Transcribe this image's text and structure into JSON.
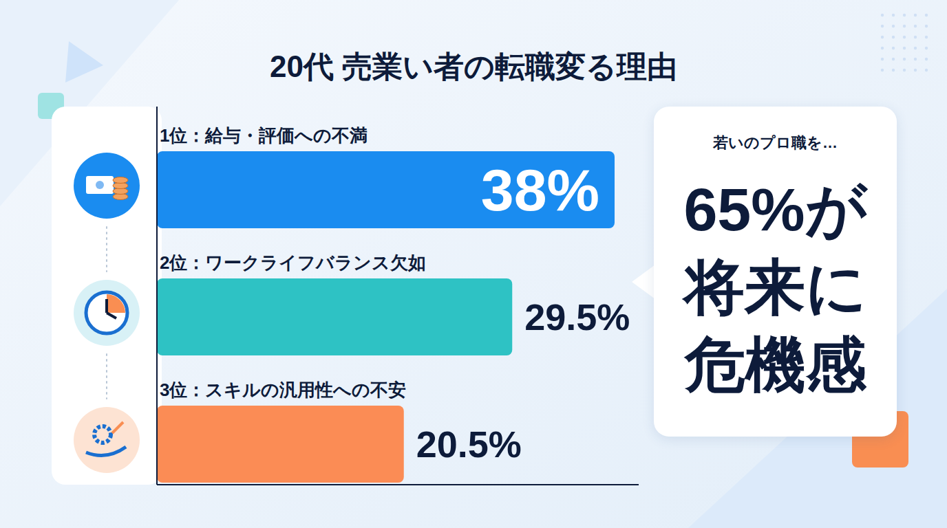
{
  "chart_data": {
    "type": "bar",
    "orientation": "horizontal",
    "title": "20代 売業い者の転職変る理由",
    "categories": [
      "1位：給与・評価への不満",
      "2位：ワークライフバランス欠如",
      "3位：スキルの汎用性への不安"
    ],
    "values": [
      38,
      29.5,
      20.5
    ],
    "value_labels": [
      "38%",
      "29.5%",
      "20.5%"
    ],
    "colors": [
      "#1a8cf0",
      "#2ec2c4",
      "#fb8c55"
    ],
    "xlim": [
      0,
      40
    ],
    "data_labels": true,
    "tick_labels": false,
    "grid": false,
    "annotations": [
      "若いのプロ職を…",
      "65%が将来に危機感"
    ]
  }
}
